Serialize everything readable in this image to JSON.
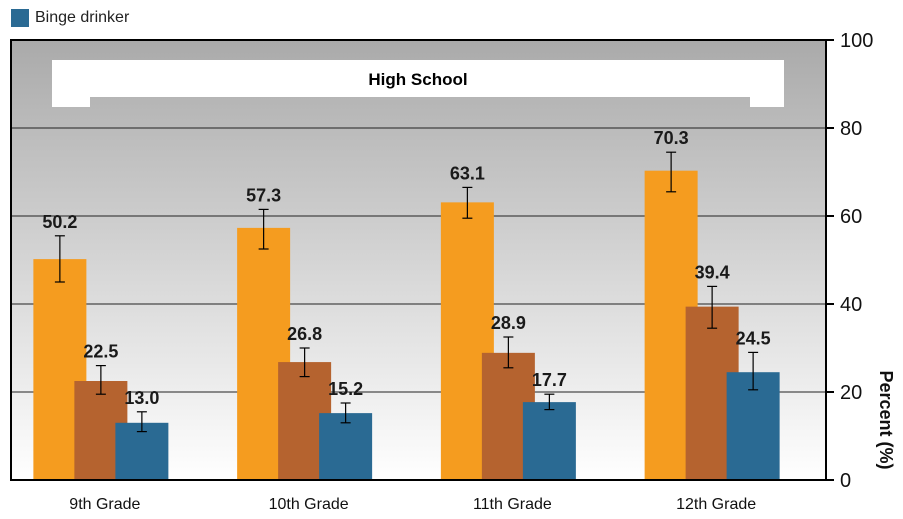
{
  "chart_data": {
    "type": "bar",
    "title": "",
    "banner": "High School",
    "categories": [
      "9th Grade",
      "10th Grade",
      "11th Grade",
      "12th Grade"
    ],
    "series": [
      {
        "values": [
          50.2,
          57.3,
          63.1,
          70.3
        ],
        "error": [
          [
            45.0,
            55.5
          ],
          [
            52.5,
            61.5
          ],
          [
            59.5,
            66.5
          ],
          [
            65.5,
            74.5
          ]
        ],
        "color": "#f59c1f"
      },
      {
        "values": [
          22.5,
          26.8,
          28.9,
          39.4
        ],
        "error": [
          [
            19.5,
            26.0
          ],
          [
            23.5,
            30.0
          ],
          [
            25.5,
            32.5
          ],
          [
            34.5,
            44.0
          ]
        ],
        "color": "#b5632f"
      },
      {
        "name": "Binge drinker",
        "values": [
          13.0,
          15.2,
          17.7,
          24.5
        ],
        "error": [
          [
            11.0,
            15.5
          ],
          [
            13.0,
            17.5
          ],
          [
            16.0,
            19.5
          ],
          [
            20.5,
            29.0
          ]
        ],
        "color": "#2a6a93"
      }
    ],
    "ylabel": "Percent (%)",
    "xlabel": "",
    "ylim": [
      0,
      100
    ],
    "yticks": [
      0,
      20,
      40,
      60,
      80,
      100
    ],
    "grid": true,
    "legend_position": "top-left"
  }
}
